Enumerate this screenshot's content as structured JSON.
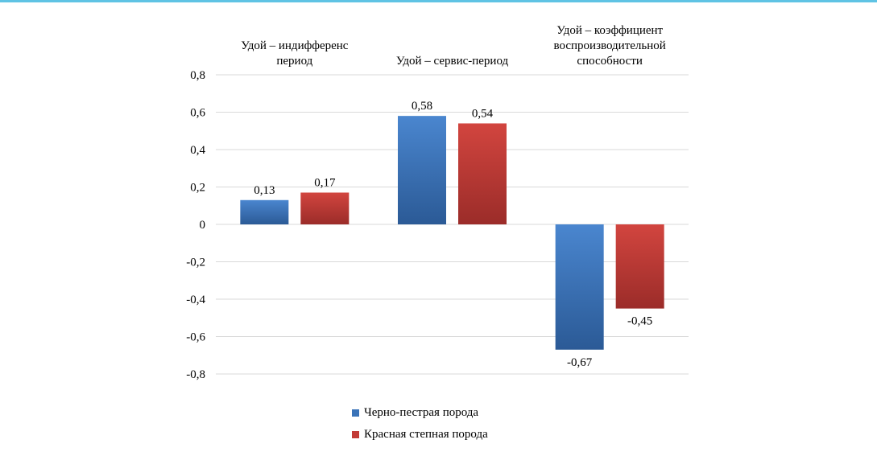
{
  "chart_data": {
    "type": "bar",
    "categories": [
      [
        "Удой – индифференс",
        "период"
      ],
      [
        "Удой – сервис-период"
      ],
      [
        "Удой – коэффициент",
        "воспроизводительной",
        "способности"
      ]
    ],
    "series": [
      {
        "name": "Черно-пестрая порода",
        "values": [
          0.13,
          0.58,
          -0.67
        ],
        "color": "#3a73b8",
        "labels": [
          "0,13",
          "0,58",
          "-0,67"
        ]
      },
      {
        "name": "Красная степная порода",
        "values": [
          0.17,
          0.54,
          -0.45
        ],
        "color": "#c23b36",
        "labels": [
          "0,17",
          "0,54",
          "-0,45"
        ]
      }
    ],
    "ylim": [
      -0.8,
      0.8
    ],
    "yticks": [
      0.8,
      0.6,
      0.4,
      0.2,
      0,
      -0.2,
      -0.4,
      -0.6,
      -0.8
    ],
    "ytick_labels": [
      "0,8",
      "0,6",
      "0,4",
      "0,2",
      "0",
      "-0,2",
      "-0,4",
      "-0,6",
      "-0,8"
    ],
    "grid": true,
    "legend_position": "bottom"
  }
}
